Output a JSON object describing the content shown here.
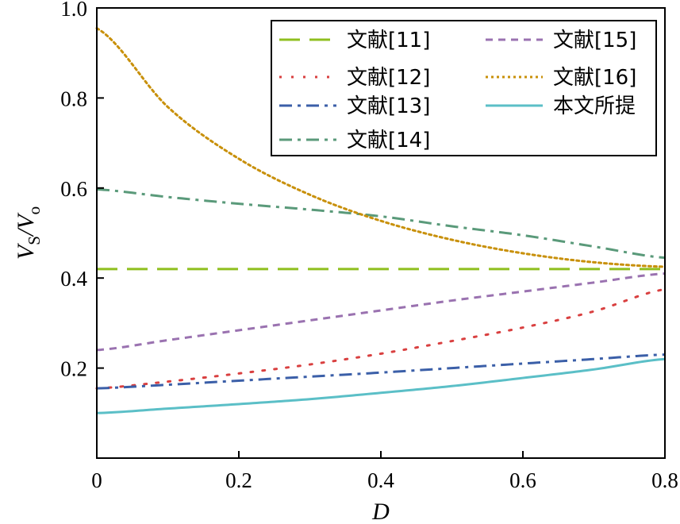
{
  "chart_data": {
    "type": "line",
    "title": "",
    "xlabel": "D",
    "ylabel": {
      "main": "V",
      "sub1": "S",
      "sep": "/V",
      "sub2": "o"
    },
    "xlim": [
      0,
      0.8
    ],
    "ylim": [
      0,
      1.0
    ],
    "x_ticks": [
      "0",
      "0.2",
      "0.4",
      "0.6",
      "0.8"
    ],
    "y_ticks": [
      "0.2",
      "0.4",
      "0.6",
      "0.8",
      "1.0"
    ],
    "x_tick_values": [
      0,
      0.2,
      0.4,
      0.6,
      0.8
    ],
    "y_tick_values": [
      0.2,
      0.4,
      0.6,
      0.8,
      1.0
    ],
    "grid": false,
    "legend_position": "top-right",
    "x": [
      0,
      0.1,
      0.2,
      0.3,
      0.4,
      0.5,
      0.6,
      0.7,
      0.8
    ],
    "series": [
      {
        "name": "文献[11]",
        "color": "#8fbf1f",
        "style": "long-dash",
        "values": [
          0.42,
          0.42,
          0.42,
          0.42,
          0.42,
          0.42,
          0.42,
          0.42,
          0.42
        ]
      },
      {
        "name": "文献[12]",
        "color": "#d94040",
        "style": "dot",
        "values": [
          0.155,
          0.17,
          0.188,
          0.208,
          0.232,
          0.26,
          0.29,
          0.326,
          0.375
        ]
      },
      {
        "name": "文献[13]",
        "color": "#3b5fa8",
        "style": "dash-dot",
        "values": [
          0.155,
          0.163,
          0.172,
          0.181,
          0.19,
          0.2,
          0.21,
          0.22,
          0.23
        ]
      },
      {
        "name": "文献[14]",
        "color": "#5a9a7a",
        "style": "dash-dot",
        "values": [
          0.597,
          0.58,
          0.565,
          0.552,
          0.537,
          0.515,
          0.495,
          0.47,
          0.445
        ]
      },
      {
        "name": "文献[15]",
        "color": "#9a72b0",
        "style": "short-dash",
        "values": [
          0.24,
          0.262,
          0.284,
          0.306,
          0.328,
          0.35,
          0.37,
          0.39,
          0.41
        ]
      },
      {
        "name": "文献[16]",
        "color": "#c8900a",
        "style": "fine-dot",
        "values": [
          0.955,
          0.78,
          0.665,
          0.585,
          0.527,
          0.485,
          0.455,
          0.435,
          0.425
        ]
      },
      {
        "name": "本文所提",
        "color": "#5bbfc7",
        "style": "solid",
        "values": [
          0.1,
          0.11,
          0.12,
          0.131,
          0.145,
          0.16,
          0.178,
          0.197,
          0.22
        ]
      }
    ]
  }
}
